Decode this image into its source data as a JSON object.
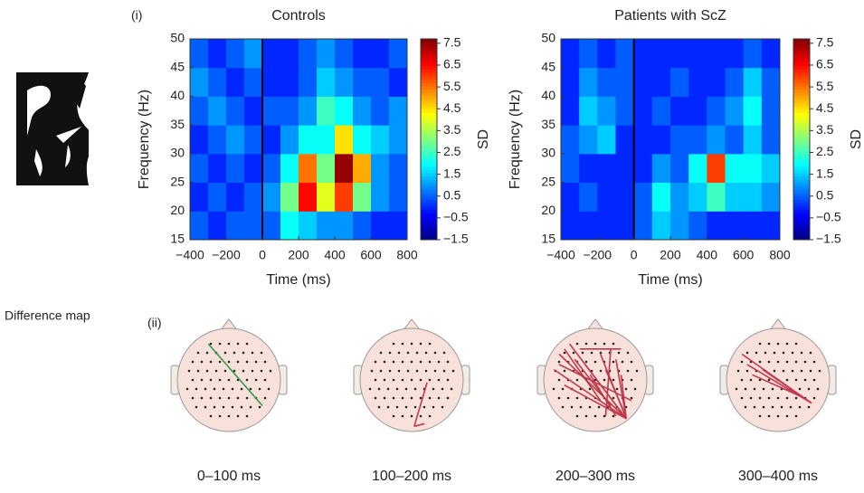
{
  "labels": {
    "panel_i": "(i)",
    "panel_ii": "(ii)",
    "difference_map": "Difference map"
  },
  "chart_data": [
    {
      "type": "heatmap",
      "title": "Controls",
      "x_label": "Time (ms)",
      "y_label": "Frequency (Hz)",
      "colorbar_label": "SD",
      "colormap": "jet",
      "xbins": [
        -400,
        -300,
        -200,
        -100,
        0,
        100,
        200,
        300,
        400,
        500,
        600,
        700,
        800
      ],
      "ybins": [
        15,
        20,
        25,
        30,
        35,
        40,
        45,
        50
      ],
      "values": [
        [
          0.5,
          0,
          0.5,
          0.5,
          0.5,
          2,
          1.5,
          1,
          1,
          0.5,
          0,
          0
        ],
        [
          0,
          0.5,
          0,
          0.5,
          1,
          3,
          6.5,
          4,
          6,
          3,
          1,
          0.5
        ],
        [
          0.5,
          0,
          0.5,
          0,
          0.5,
          2,
          5.5,
          3,
          7.5,
          5,
          1,
          0.5
        ],
        [
          0,
          0.5,
          1,
          0.5,
          0,
          1,
          2,
          2,
          4.5,
          2,
          1.5,
          1
        ],
        [
          0.5,
          1,
          0.5,
          0,
          0.5,
          0.5,
          1,
          2.5,
          2,
          1,
          0.5,
          1
        ],
        [
          1,
          0.5,
          0,
          0.5,
          0,
          0,
          0.5,
          1.5,
          1,
          0.5,
          0.5,
          0
        ],
        [
          0.5,
          0,
          0.5,
          1,
          0,
          0,
          0.5,
          1,
          0.5,
          0,
          0,
          0.5
        ]
      ],
      "xlim": [
        -400,
        800
      ],
      "xticks": [
        {
          "value": -400,
          "label": "−400"
        },
        {
          "value": -200,
          "label": "−200"
        },
        0,
        200,
        400,
        600,
        800
      ],
      "ylim": [
        15,
        50
      ],
      "yticks": [
        15,
        20,
        25,
        30,
        35,
        40,
        45,
        50
      ],
      "event_line": 0,
      "clim": [
        -1.5,
        7.7
      ],
      "cbar_ticks": [
        7.5,
        6.5,
        5.5,
        4.5,
        3.5,
        2.5,
        1.5,
        0.5,
        {
          "value": -0.5,
          "label": "−0.5"
        },
        {
          "value": -1.5,
          "label": "−1.5"
        }
      ]
    },
    {
      "type": "heatmap",
      "title": "Patients with ScZ",
      "x_label": "Time (ms)",
      "y_label": "Frequency (Hz)",
      "colorbar_label": "SD",
      "colormap": "jet",
      "xbins": [
        -400,
        -300,
        -200,
        -100,
        0,
        100,
        200,
        300,
        400,
        500,
        600,
        700,
        800
      ],
      "ybins": [
        15,
        20,
        25,
        30,
        35,
        40,
        45,
        50
      ],
      "values": [
        [
          0,
          0,
          0,
          0,
          0.5,
          1.5,
          1,
          0.5,
          0,
          0,
          0,
          0
        ],
        [
          0,
          0.5,
          0,
          0,
          0.5,
          2,
          1,
          1.5,
          2.5,
          1.5,
          1.5,
          1
        ],
        [
          0.5,
          0,
          0,
          0,
          0,
          1,
          0.5,
          2,
          6,
          2,
          2,
          1.5
        ],
        [
          0.5,
          1,
          1.5,
          0,
          0,
          0,
          0.5,
          0.5,
          1,
          0.5,
          1.5,
          0.5
        ],
        [
          0,
          1.5,
          1,
          0.5,
          0,
          0.5,
          0,
          0,
          0.5,
          1,
          2,
          0.5
        ],
        [
          0,
          1,
          0.5,
          0.5,
          0,
          0,
          0.5,
          0,
          0,
          0.5,
          1.5,
          0.5
        ],
        [
          0,
          0.5,
          0,
          0.5,
          0,
          0,
          0,
          0,
          0,
          0,
          0.5,
          0
        ]
      ],
      "xlim": [
        -400,
        800
      ],
      "xticks": [
        {
          "value": -400,
          "label": "−400"
        },
        {
          "value": -200,
          "label": "−200"
        },
        0,
        200,
        400,
        600,
        800
      ],
      "ylim": [
        15,
        50
      ],
      "yticks": [
        15,
        20,
        25,
        30,
        35,
        40,
        45,
        50
      ],
      "event_line": 0,
      "clim": [
        -1.5,
        7.7
      ],
      "cbar_ticks": [
        7.5,
        6.5,
        5.5,
        4.5,
        3.5,
        2.5,
        1.5,
        0.5,
        {
          "value": -0.5,
          "label": "−0.5"
        },
        {
          "value": -1.5,
          "label": "−1.5"
        }
      ]
    }
  ],
  "maps": [
    {
      "label": "0–100 ms"
    },
    {
      "label": "100–200 ms"
    },
    {
      "label": "200–300 ms"
    },
    {
      "label": "300–400 ms"
    }
  ]
}
